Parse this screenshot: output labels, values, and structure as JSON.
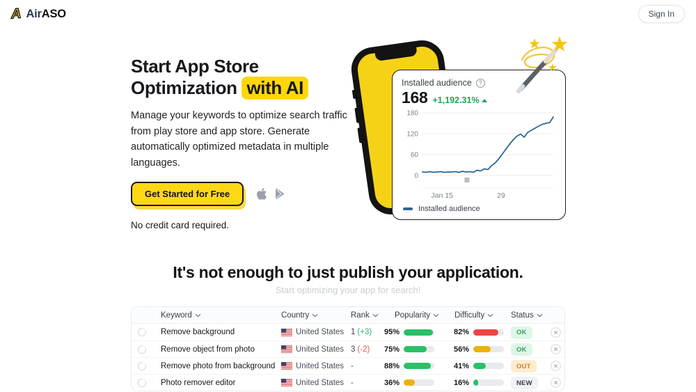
{
  "brand": {
    "mark": "A",
    "name_air": "Air",
    "name_aso": "ASO"
  },
  "header": {
    "sign_in_label": "Sign In"
  },
  "hero": {
    "title_line1": "Start App Store",
    "title_line2_pre": "Optimization",
    "title_highlight": "with AI",
    "description": "Manage your keywords to optimize search traffic from play store and app store. Generate automatically optimized metadata in multiple languages.",
    "cta_label": "Get Started for Free",
    "store_icons": [
      "apple-logo",
      "google-play-logo"
    ],
    "no_credit_label": "No credit card required."
  },
  "stats_card": {
    "title": "Installed audience",
    "value": "168",
    "change": "+1,192.31%",
    "legend_label": "Installed audience"
  },
  "chart_data": {
    "type": "line",
    "title": "Installed audience",
    "y_ticks": [
      0,
      60,
      120,
      180
    ],
    "ylim": [
      0,
      180
    ],
    "x_tick_labels": [
      "Jan 15",
      "29"
    ],
    "x_tick_pos": [
      0.15,
      0.6
    ],
    "marker_pos": 0.34,
    "grid": true,
    "legend_position": "bottom",
    "series": [
      {
        "name": "Installed audience",
        "values": [
          10,
          9,
          11,
          9,
          10,
          11,
          9,
          10,
          10,
          11,
          9,
          12,
          10,
          11,
          9,
          15,
          13,
          19,
          17,
          28,
          36,
          48,
          62,
          76,
          90,
          103,
          113,
          119,
          110,
          124,
          130,
          136,
          142,
          147,
          150,
          152,
          168
        ]
      }
    ]
  },
  "section_intro": {
    "title": "It's not enough to just publish your application.",
    "subtitle": "Start optimizing your app for search!"
  },
  "table": {
    "headers": [
      "Keyword",
      "Country",
      "Rank",
      "Popularity",
      "Difficulty",
      "Status"
    ],
    "rows": [
      {
        "keyword": "Remove background",
        "country": "United States",
        "rank": "1",
        "rank_change": "(+3)",
        "rank_change_dir": "up",
        "popularity": 95,
        "popularity_color": "green",
        "difficulty": 82,
        "difficulty_color": "red",
        "status": "OK"
      },
      {
        "keyword": "Remove object from photo",
        "country": "United States",
        "rank": "3",
        "rank_change": "(-2)",
        "rank_change_dir": "down",
        "popularity": 75,
        "popularity_color": "green",
        "difficulty": 56,
        "difficulty_color": "amber",
        "status": "OK"
      },
      {
        "keyword": "Remove photo from background",
        "country": "United States",
        "rank": "-",
        "rank_change": "",
        "rank_change_dir": "",
        "popularity": 88,
        "popularity_color": "green",
        "difficulty": 41,
        "difficulty_color": "green",
        "status": "OUT"
      },
      {
        "keyword": "Photo remover editor",
        "country": "United States",
        "rank": "-",
        "rank_change": "",
        "rank_change_dir": "",
        "popularity": 36,
        "popularity_color": "amber",
        "difficulty": 16,
        "difficulty_color": "green",
        "status": "NEW"
      }
    ]
  },
  "colors": {
    "accent_yellow": "#ffd814",
    "highlight_yellow": "#ffd60a",
    "green": "#29c067",
    "amber": "#e9b306",
    "red": "#ef4444",
    "line_blue": "#2d6596",
    "change_green": "#1ea351"
  }
}
